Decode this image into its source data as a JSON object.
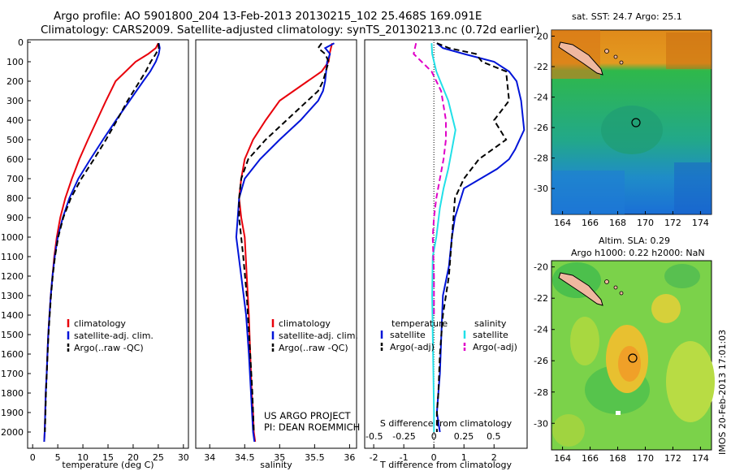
{
  "header": {
    "line1": "Argo profile: AO 5901800_204 13-Feb-2013 20130215_102 25.468S 169.091E",
    "line2": "Climatology: CARS2009. Satellite-adjusted climatology: synTS_20130213.nc (0.72d earlier)"
  },
  "credit": {
    "line1": "US ARGO PROJECT",
    "line2": "PI: DEAN ROEMMICH"
  },
  "stamp": "IMOS 20-Feb-2013 17:01:03",
  "colors": {
    "climatology": "#e8000b",
    "satellite": "#0014d8",
    "argo": "#000000",
    "sal_satellite": "#21e0e8",
    "sal_argo": "#e000c8"
  },
  "map_titles": {
    "sst": "sat. SST: 24.7 Argo: 25.1",
    "sla_line1": "Altim. SLA: 0.29",
    "sla_line2": "Argo h1000: 0.22 h2000: NaN"
  },
  "maps": {
    "xticks": [
      "164",
      "166",
      "168",
      "170",
      "172",
      "174"
    ],
    "yticks": [
      "-20",
      "-22",
      "-24",
      "-26",
      "-28",
      "-30"
    ],
    "argo_marker": {
      "lon": 169.091,
      "lat": -25.468
    }
  },
  "chart_data": [
    {
      "type": "line",
      "panel": "temperature",
      "xlabel": "temperature (deg C)",
      "ylabel": "",
      "xlim": [
        -1,
        31
      ],
      "ylim": [
        2070,
        0
      ],
      "y_reversed": true,
      "xticks": [
        "0",
        "5",
        "10",
        "15",
        "20",
        "25",
        "30"
      ],
      "yticks": [
        "0",
        "100",
        "200",
        "300",
        "400",
        "500",
        "600",
        "700",
        "800",
        "900",
        "1000",
        "1100",
        "1200",
        "1300",
        "1400",
        "1500",
        "1600",
        "1700",
        "1800",
        "1900",
        "2000"
      ],
      "legend": [
        "climatology",
        "satellite-adj. clim.",
        "Argo(..raw -QC)"
      ],
      "series": [
        {
          "name": "climatology",
          "color": "climatology",
          "x": [
            25.0,
            24.5,
            23.0,
            20.5,
            18.5,
            16.5,
            14.6,
            12.8,
            11.0,
            9.3,
            7.8,
            6.5,
            5.5,
            4.8,
            4.3,
            3.95,
            3.6,
            3.35,
            3.1,
            2.95,
            2.8,
            2.6,
            2.5,
            2.4,
            2.3
          ],
          "y": [
            5,
            30,
            60,
            100,
            150,
            200,
            300,
            400,
            500,
            600,
            700,
            800,
            900,
            1000,
            1100,
            1200,
            1300,
            1400,
            1500,
            1600,
            1700,
            1800,
            1900,
            2000,
            2050
          ]
        },
        {
          "name": "satellite-adj. clim.",
          "color": "satellite",
          "x": [
            25.1,
            25.3,
            25.1,
            24.5,
            23.4,
            22.0,
            19.3,
            16.6,
            14.0,
            11.5,
            9.1,
            7.3,
            6.0,
            5.0,
            4.4,
            3.95,
            3.6,
            3.35,
            3.1,
            2.95,
            2.8,
            2.6,
            2.5,
            2.4,
            2.3
          ],
          "y": [
            5,
            30,
            60,
            100,
            150,
            200,
            300,
            400,
            500,
            600,
            700,
            800,
            900,
            1000,
            1100,
            1200,
            1300,
            1400,
            1500,
            1600,
            1700,
            1800,
            1900,
            2000,
            2050
          ]
        },
        {
          "name": "Argo(..raw -QC)",
          "color": "argo",
          "dash": true,
          "x": [
            25.0,
            25.1,
            24.5,
            23.5,
            22.5,
            21.3,
            18.9,
            16.8,
            14.6,
            12.2,
            9.7,
            7.6,
            6.1,
            5.1,
            4.45,
            4.0,
            3.65,
            3.4,
            3.15,
            2.97,
            2.82,
            2.65,
            2.55,
            2.45
          ],
          "y": [
            5,
            30,
            60,
            100,
            150,
            200,
            300,
            400,
            500,
            600,
            700,
            800,
            900,
            1000,
            1100,
            1200,
            1300,
            1400,
            1500,
            1600,
            1700,
            1800,
            1900,
            2000
          ]
        }
      ]
    },
    {
      "type": "line",
      "panel": "salinity",
      "xlabel": "salinity",
      "ylabel": "",
      "xlim": [
        33.8,
        36.1
      ],
      "ylim": [
        2070,
        0
      ],
      "y_reversed": true,
      "xticks": [
        "34",
        "34.5",
        "35",
        "35.5",
        "36"
      ],
      "legend": [
        "climatology",
        "satellite-adj. clim.",
        "Argo(..raw -QC)"
      ],
      "series": [
        {
          "name": "climatology",
          "color": "climatology",
          "x": [
            35.75,
            35.72,
            35.7,
            35.6,
            35.4,
            35.2,
            35.0,
            34.8,
            34.62,
            34.5,
            34.45,
            34.42,
            34.45,
            34.5,
            34.53,
            34.56,
            34.58,
            34.6,
            34.62,
            34.63,
            34.65
          ],
          "y": [
            5,
            50,
            100,
            150,
            200,
            250,
            300,
            400,
            500,
            600,
            700,
            800,
            900,
            1000,
            1200,
            1400,
            1600,
            1800,
            1900,
            2000,
            2050
          ]
        },
        {
          "name": "satellite-adj. clim.",
          "color": "satellite",
          "x": [
            35.78,
            35.65,
            35.72,
            35.68,
            35.65,
            35.62,
            35.55,
            35.3,
            35.0,
            34.72,
            34.5,
            34.42,
            34.4,
            34.38,
            34.45,
            34.52,
            34.56,
            34.59,
            34.62,
            34.64
          ],
          "y": [
            5,
            30,
            60,
            100,
            200,
            250,
            300,
            400,
            500,
            600,
            700,
            800,
            900,
            1000,
            1200,
            1400,
            1600,
            1800,
            2000,
            2050
          ]
        },
        {
          "name": "Argo(..raw -QC)",
          "color": "argo",
          "dash": true,
          "x": [
            35.6,
            35.55,
            35.65,
            35.7,
            35.62,
            35.55,
            35.4,
            35.1,
            34.8,
            34.55,
            34.45,
            34.42,
            34.42,
            34.48,
            34.53,
            34.58,
            34.61,
            34.63
          ],
          "y": [
            5,
            30,
            60,
            100,
            200,
            250,
            300,
            400,
            500,
            600,
            700,
            800,
            900,
            1100,
            1300,
            1600,
            1800,
            2000
          ]
        }
      ]
    },
    {
      "type": "line",
      "panel": "difference",
      "xlabel": "T difference from climatology",
      "x2label": "S difference from climatology",
      "xlim": [
        -2.3,
        3.1
      ],
      "x2lim": [
        -0.58,
        0.78
      ],
      "ylim": [
        2070,
        0
      ],
      "y_reversed": true,
      "xticks": [
        "-2",
        "-1",
        "0",
        "1",
        "2"
      ],
      "x2ticks": [
        "-0.5",
        "-0.25",
        "0",
        "0.25",
        "0.5"
      ],
      "legend_headers": [
        "temperature",
        "salinity"
      ],
      "legend": [
        "satellite",
        "Argo(-adj)",
        "satellite",
        "Argo(-adj)"
      ],
      "series": [
        {
          "name": "satellite",
          "group": "temperature",
          "color": "satellite",
          "x": [
            0.1,
            0.3,
            1.0,
            2.0,
            2.5,
            2.75,
            2.9,
            3.0,
            2.7,
            2.5,
            2.1,
            1.0,
            0.7,
            0.6,
            0.5,
            0.3,
            0.25,
            0.2,
            0.15,
            0.1,
            0.2
          ],
          "y": [
            5,
            30,
            60,
            100,
            150,
            200,
            300,
            450,
            550,
            600,
            650,
            750,
            900,
            1000,
            1150,
            1300,
            1500,
            1700,
            1800,
            1900,
            2000
          ]
        },
        {
          "name": "Argo(-adj)",
          "group": "temperature",
          "color": "argo",
          "dash": true,
          "x": [
            0.1,
            0.5,
            1.4,
            1.6,
            2.4,
            2.5,
            2.0,
            2.4,
            1.5,
            1.0,
            0.7,
            0.65,
            0.6,
            0.5,
            0.3,
            0.2,
            0.15,
            0.1,
            0.1
          ],
          "y": [
            5,
            30,
            60,
            100,
            150,
            300,
            400,
            500,
            600,
            700,
            800,
            900,
            1000,
            1200,
            1400,
            1600,
            1800,
            1900,
            2000
          ]
        },
        {
          "name": "satellite",
          "group": "salinity",
          "color": "sal_satellite",
          "x": [
            -0.02,
            -0.015,
            0.02,
            0.12,
            0.18,
            0.15,
            0.12,
            0.08,
            0.05,
            0.02,
            -0.01,
            -0.015,
            -0.01,
            -0.005,
            0.0,
            0.0
          ],
          "y": [
            5,
            60,
            150,
            300,
            450,
            550,
            650,
            750,
            850,
            1000,
            1100,
            1300,
            1500,
            1700,
            1900,
            2000
          ]
        },
        {
          "name": "Argo(-adj)",
          "group": "salinity",
          "color": "sal_argo",
          "dash": true,
          "x": [
            -0.15,
            -0.17,
            -0.02,
            0.06,
            0.1,
            0.1,
            0.08,
            0.05,
            0.02,
            0.0,
            -0.01,
            0.0,
            0.0
          ],
          "y": [
            5,
            60,
            150,
            250,
            400,
            500,
            600,
            700,
            800,
            900,
            1000,
            1200,
            1400
          ]
        }
      ]
    }
  ]
}
